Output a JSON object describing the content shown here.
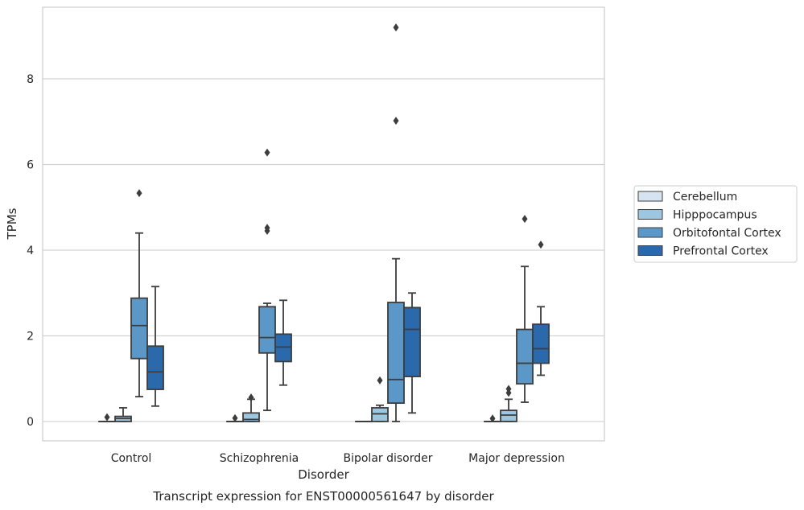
{
  "chart_data": {
    "type": "box",
    "title": "",
    "caption": "Transcript expression for ENST00000561647 by disorder",
    "xlabel": "Disorder",
    "ylabel": "TPMs",
    "ylim": [
      -0.45,
      9.7
    ],
    "yticks": [
      0,
      2,
      4,
      6,
      8
    ],
    "grid": "horizontal",
    "legend_position": "right",
    "categories": [
      "Control",
      "Schizophrenia",
      "Bipolar disorder",
      "Major depression"
    ],
    "series": [
      {
        "name": "Cerebellum",
        "color": "#d6e4f2",
        "boxes": [
          {
            "whislo": 0,
            "q1": 0,
            "med": 0,
            "q3": 0,
            "whishi": 0,
            "fliers": [
              0.1
            ]
          },
          {
            "whislo": 0,
            "q1": 0,
            "med": 0,
            "q3": 0,
            "whishi": 0,
            "fliers": [
              0.08
            ]
          },
          {
            "whislo": 0,
            "q1": 0,
            "med": 0,
            "q3": 0,
            "whishi": 0,
            "fliers": []
          },
          {
            "whislo": 0,
            "q1": 0,
            "med": 0,
            "q3": 0,
            "whishi": 0,
            "fliers": [
              0.07
            ]
          }
        ]
      },
      {
        "name": "Hipppocampus",
        "color": "#9dc7e0",
        "boxes": [
          {
            "whislo": 0,
            "q1": 0,
            "med": 0.07,
            "q3": 0.12,
            "whishi": 0.32,
            "fliers": []
          },
          {
            "whislo": 0,
            "q1": 0,
            "med": 0.05,
            "q3": 0.2,
            "whishi": 0.52,
            "fliers": [
              0.56
            ]
          },
          {
            "whislo": 0,
            "q1": 0,
            "med": 0.18,
            "q3": 0.32,
            "whishi": 0.38,
            "fliers": [
              0.96
            ]
          },
          {
            "whislo": 0,
            "q1": 0,
            "med": 0.15,
            "q3": 0.26,
            "whishi": 0.52,
            "fliers": [
              0.67,
              0.76
            ]
          }
        ]
      },
      {
        "name": "Orbitofontal Cortex",
        "color": "#5b98c8",
        "boxes": [
          {
            "whislo": 0.58,
            "q1": 1.47,
            "med": 2.24,
            "q3": 2.88,
            "whishi": 4.4,
            "fliers": [
              5.33
            ]
          },
          {
            "whislo": 0.26,
            "q1": 1.6,
            "med": 1.96,
            "q3": 2.68,
            "whishi": 2.76,
            "fliers": [
              4.45,
              4.52,
              6.28
            ]
          },
          {
            "whislo": 0,
            "q1": 0.43,
            "med": 0.98,
            "q3": 2.78,
            "whishi": 3.8,
            "fliers": [
              7.02,
              9.2
            ]
          },
          {
            "whislo": 0.45,
            "q1": 0.88,
            "med": 1.36,
            "q3": 2.15,
            "whishi": 3.62,
            "fliers": [
              4.73
            ]
          }
        ]
      },
      {
        "name": "Prefrontal Cortex",
        "color": "#2a6aac",
        "boxes": [
          {
            "whislo": 0.36,
            "q1": 0.75,
            "med": 1.16,
            "q3": 1.76,
            "whishi": 3.15,
            "fliers": []
          },
          {
            "whislo": 0.85,
            "q1": 1.4,
            "med": 1.74,
            "q3": 2.04,
            "whishi": 2.83,
            "fliers": []
          },
          {
            "whislo": 0.2,
            "q1": 1.05,
            "med": 2.15,
            "q3": 2.66,
            "whishi": 3.0,
            "fliers": []
          },
          {
            "whislo": 1.08,
            "q1": 1.36,
            "med": 1.7,
            "q3": 2.27,
            "whishi": 2.68,
            "fliers": [
              4.13
            ]
          }
        ]
      }
    ]
  }
}
